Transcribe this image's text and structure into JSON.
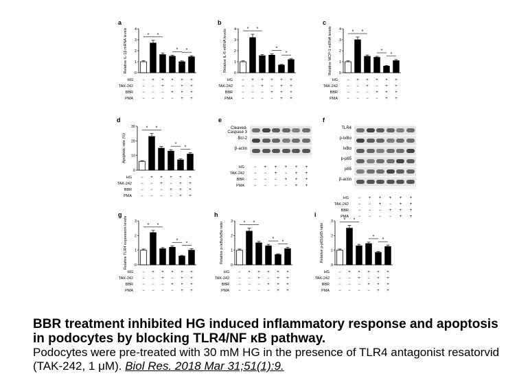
{
  "figure": {
    "caption_title": "BBR treatment inhibited HG induced inflammatory response and apoptosis in podocytes by blocking TLR4/NF κB pathway.",
    "caption_body": "Podocytes were pre-treated with 30 mM HG in the presence of TLR4 antagonist resatorvid (TAK-242, 1 μM).",
    "citation": "Biol Res. 2018 Mar 31;51(1):9."
  },
  "conditions": {
    "rows": [
      {
        "label": "HG",
        "signs": [
          "−",
          "+",
          "+",
          "+",
          "+",
          "+"
        ]
      },
      {
        "label": "TAK-242",
        "signs": [
          "−",
          "−",
          "+",
          "−",
          "+",
          "+"
        ]
      },
      {
        "label": "BBR",
        "signs": [
          "−",
          "−",
          "−",
          "+",
          "+",
          "+"
        ]
      },
      {
        "label": "PMA",
        "signs": [
          "−",
          "−",
          "−",
          "−",
          "+",
          "+"
        ]
      }
    ]
  },
  "chart_data": [
    {
      "panel": "a",
      "type": "bar",
      "ylabel": "Relative IL-1β mRNA levels",
      "ylim": [
        0,
        4
      ],
      "yticks": [
        "0",
        "1",
        "2",
        "3",
        "4"
      ],
      "values": [
        1.0,
        2.7,
        1.65,
        1.5,
        1.0,
        1.45
      ],
      "errors": [
        0.1,
        0.25,
        0.15,
        0.1,
        0.08,
        0.1
      ],
      "sig_marks": [
        "*",
        "*",
        "*",
        "*"
      ]
    },
    {
      "panel": "b",
      "type": "bar",
      "ylabel": "Relative IL-6 mRNA levels",
      "ylim": [
        0,
        4
      ],
      "yticks": [
        "0",
        "1",
        "2",
        "3",
        "4"
      ],
      "values": [
        1.0,
        3.2,
        1.55,
        1.6,
        0.7,
        1.2
      ],
      "errors": [
        0.08,
        0.3,
        0.1,
        0.12,
        0.06,
        0.1
      ],
      "sig_marks": [
        "*",
        "*",
        "*",
        "*"
      ]
    },
    {
      "panel": "c",
      "type": "bar",
      "ylabel": "Relative MCP-1 mRNA levels",
      "ylim": [
        0,
        4
      ],
      "yticks": [
        "0",
        "1",
        "2",
        "3",
        "4"
      ],
      "values": [
        1.0,
        3.0,
        1.5,
        1.4,
        0.6,
        1.1
      ],
      "errors": [
        0.08,
        0.25,
        0.12,
        0.1,
        0.06,
        0.1
      ],
      "sig_marks": [
        "*",
        "*",
        "*",
        "*"
      ]
    },
    {
      "panel": "d",
      "type": "bar",
      "ylabel": "Apoptotic rate (%)",
      "ylim": [
        0,
        30
      ],
      "yticks": [
        "0",
        "10",
        "20",
        "30"
      ],
      "values": [
        6,
        23,
        15,
        13,
        7,
        11
      ],
      "errors": [
        0.5,
        2,
        1.2,
        1,
        0.7,
        1
      ],
      "sig_marks": [
        "*",
        "*",
        "*",
        "*"
      ]
    },
    {
      "panel": "g",
      "type": "bar",
      "ylabel": "Relative TLR4 expression levels",
      "ylim": [
        0,
        3
      ],
      "yticks": [
        "0",
        "1",
        "2",
        "3"
      ],
      "values": [
        1.0,
        2.2,
        1.1,
        1.2,
        0.6,
        1.0
      ],
      "errors": [
        0.08,
        0.15,
        0.08,
        0.1,
        0.05,
        0.1
      ],
      "sig_marks": [
        "*",
        "*",
        "*",
        "*"
      ]
    },
    {
      "panel": "h",
      "type": "bar",
      "ylabel": "Relative p-IκBα/IκBα ratio",
      "ylim": [
        0,
        3
      ],
      "yticks": [
        "0",
        "1",
        "2",
        "3"
      ],
      "values": [
        1.0,
        2.3,
        1.5,
        1.3,
        0.7,
        1.1
      ],
      "errors": [
        0.08,
        0.2,
        0.1,
        0.1,
        0.05,
        0.1
      ],
      "sig_marks": [
        "*",
        "*",
        "*",
        "*"
      ]
    },
    {
      "panel": "i",
      "type": "bar",
      "ylabel": "Relative p-p65/p65 ratio",
      "ylim": [
        0,
        3
      ],
      "yticks": [
        "0",
        "1",
        "2",
        "3"
      ],
      "values": [
        1.0,
        2.5,
        1.3,
        1.45,
        0.85,
        1.25
      ],
      "errors": [
        0.08,
        0.2,
        0.1,
        0.1,
        0.06,
        0.1
      ],
      "sig_marks": [
        "*",
        "*",
        "*",
        "*"
      ]
    }
  ],
  "blots": [
    {
      "panel": "e",
      "rows": [
        "Cleaved-Caspase 3",
        "Bcl-2",
        "β-actin"
      ]
    },
    {
      "panel": "f",
      "rows": [
        "TLR4",
        "p-IκBα",
        "IκBα",
        "p-p65",
        "p65",
        "β-actin"
      ]
    }
  ]
}
